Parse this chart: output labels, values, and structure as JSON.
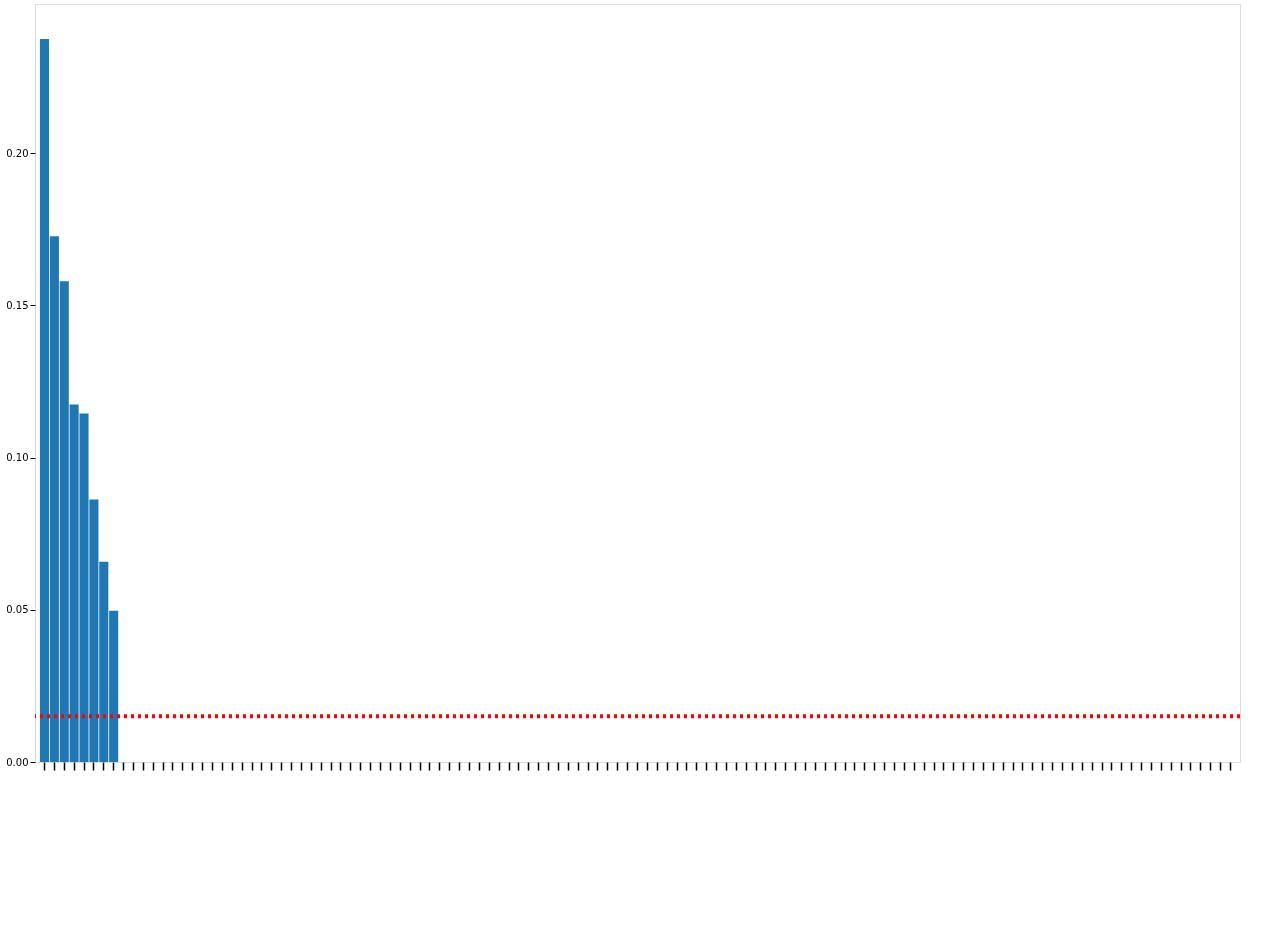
{
  "chart_data": {
    "type": "bar",
    "categories": [
      null,
      null,
      null,
      null,
      null,
      null,
      null,
      null,
      null,
      null,
      null,
      null,
      null,
      null,
      null,
      null,
      null,
      null,
      null,
      null,
      null,
      null,
      null,
      null,
      null,
      null,
      null,
      null,
      null,
      null,
      null,
      null,
      null,
      null,
      null,
      null,
      null,
      null,
      null,
      null,
      null,
      null,
      null,
      null,
      null,
      null,
      null,
      null,
      null,
      null,
      null,
      null,
      null,
      null,
      null,
      null,
      null,
      null,
      null,
      null,
      null,
      null,
      null,
      null,
      null,
      null,
      null,
      null,
      null,
      null,
      null,
      null,
      null,
      null,
      null,
      null,
      null,
      null,
      null,
      null,
      null,
      null,
      null,
      null,
      null,
      null,
      null,
      null,
      null,
      null,
      null,
      null,
      null,
      null,
      null,
      null,
      null,
      null,
      null,
      null,
      null,
      null,
      null,
      null,
      null,
      null,
      null,
      null,
      null,
      null,
      null,
      null,
      null,
      null,
      null,
      null,
      null,
      null,
      null,
      null,
      null
    ],
    "values": [
      0.2375,
      0.1727,
      0.1579,
      0.1174,
      0.1145,
      0.0862,
      0.0658,
      0.0497,
      0,
      0,
      0,
      0,
      0,
      0,
      0,
      0,
      0,
      0,
      0,
      0,
      0,
      0,
      0,
      0,
      0,
      0,
      0,
      0,
      0,
      0,
      0,
      0,
      0,
      0,
      0,
      0,
      0,
      0,
      0,
      0,
      0,
      0,
      0,
      0,
      0,
      0,
      0,
      0,
      0,
      0,
      0,
      0,
      0,
      0,
      0,
      0,
      0,
      0,
      0,
      0,
      0,
      0,
      0,
      0,
      0,
      0,
      0,
      0,
      0,
      0,
      0,
      0,
      0,
      0,
      0,
      0,
      0,
      0,
      0,
      0,
      0,
      0,
      0,
      0,
      0,
      0,
      0,
      0,
      0,
      0,
      0,
      0,
      0,
      0,
      0,
      0,
      0,
      0,
      0,
      0,
      0,
      0,
      0,
      0,
      0,
      0,
      0,
      0,
      0,
      0,
      0,
      0,
      0,
      0,
      0,
      0,
      0,
      0,
      0,
      0,
      0
    ],
    "color": "#1f77b4",
    "ylim": [
      0,
      0.249
    ],
    "yticks": [
      {
        "value": 0,
        "label": "0.00"
      },
      {
        "value": 0.05,
        "label": "0.05"
      },
      {
        "value": 0.1,
        "label": "0.10"
      },
      {
        "value": 0.15,
        "label": "0.15"
      },
      {
        "value": 0.2,
        "label": "0.20"
      }
    ],
    "ref_lines": [
      {
        "axis": "y",
        "value": 0.015,
        "color": "#ff0000",
        "line_style": "dotted"
      }
    ],
    "grid": false
  }
}
